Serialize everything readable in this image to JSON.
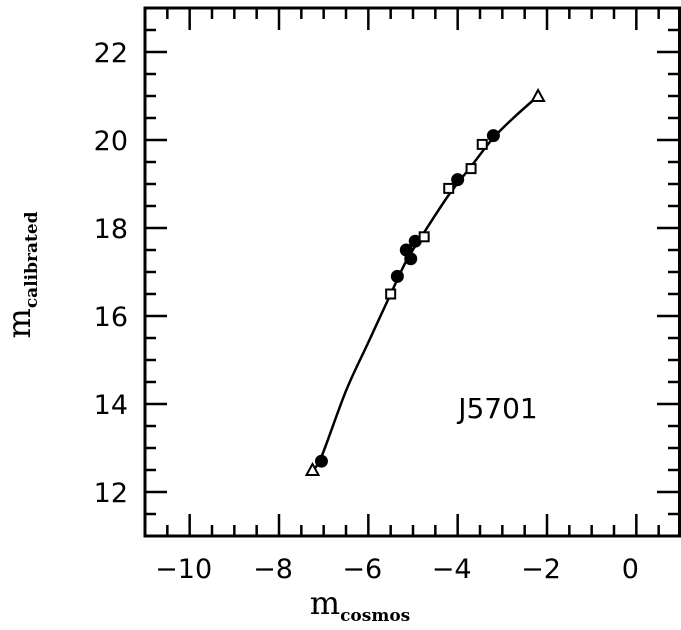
{
  "chart_data": {
    "type": "scatter",
    "xlabel_main": "m",
    "xlabel_sub": "cosmos",
    "ylabel_main": "m",
    "ylabel_sub": "calibrated",
    "annotation": "J5701",
    "xlim": [
      -11,
      1
    ],
    "ylim": [
      11,
      23
    ],
    "xticks": [
      -10,
      -8,
      -6,
      -4,
      -2,
      0
    ],
    "yticks": [
      12,
      14,
      16,
      18,
      20,
      22
    ],
    "xtick_labels": [
      "−10",
      "−8",
      "−6",
      "−4",
      "−2",
      "0"
    ],
    "ytick_labels": [
      "12",
      "14",
      "16",
      "18",
      "20",
      "22"
    ],
    "grid": false,
    "series": [
      {
        "marker": "filled-circle",
        "points": [
          [
            -7.05,
            12.7
          ],
          [
            -5.35,
            16.9
          ],
          [
            -5.15,
            17.5
          ],
          [
            -5.05,
            17.3
          ],
          [
            -4.95,
            17.7
          ],
          [
            -4.0,
            19.1
          ],
          [
            -3.2,
            20.1
          ]
        ]
      },
      {
        "marker": "open-square",
        "points": [
          [
            -5.5,
            16.5
          ],
          [
            -4.75,
            17.8
          ],
          [
            -4.2,
            18.9
          ],
          [
            -3.7,
            19.35
          ],
          [
            -3.45,
            19.9
          ]
        ]
      },
      {
        "marker": "open-triangle",
        "points": [
          [
            -7.25,
            12.5
          ],
          [
            -2.2,
            21.0
          ]
        ]
      }
    ],
    "fit_curve": [
      [
        -7.25,
        12.5
      ],
      [
        -7.05,
        12.8
      ],
      [
        -6.5,
        14.3
      ],
      [
        -6.0,
        15.4
      ],
      [
        -5.5,
        16.5
      ],
      [
        -5.15,
        17.25
      ],
      [
        -4.75,
        17.9
      ],
      [
        -4.2,
        18.75
      ],
      [
        -3.7,
        19.4
      ],
      [
        -3.2,
        20.05
      ],
      [
        -2.7,
        20.55
      ],
      [
        -2.2,
        21.0
      ]
    ]
  }
}
